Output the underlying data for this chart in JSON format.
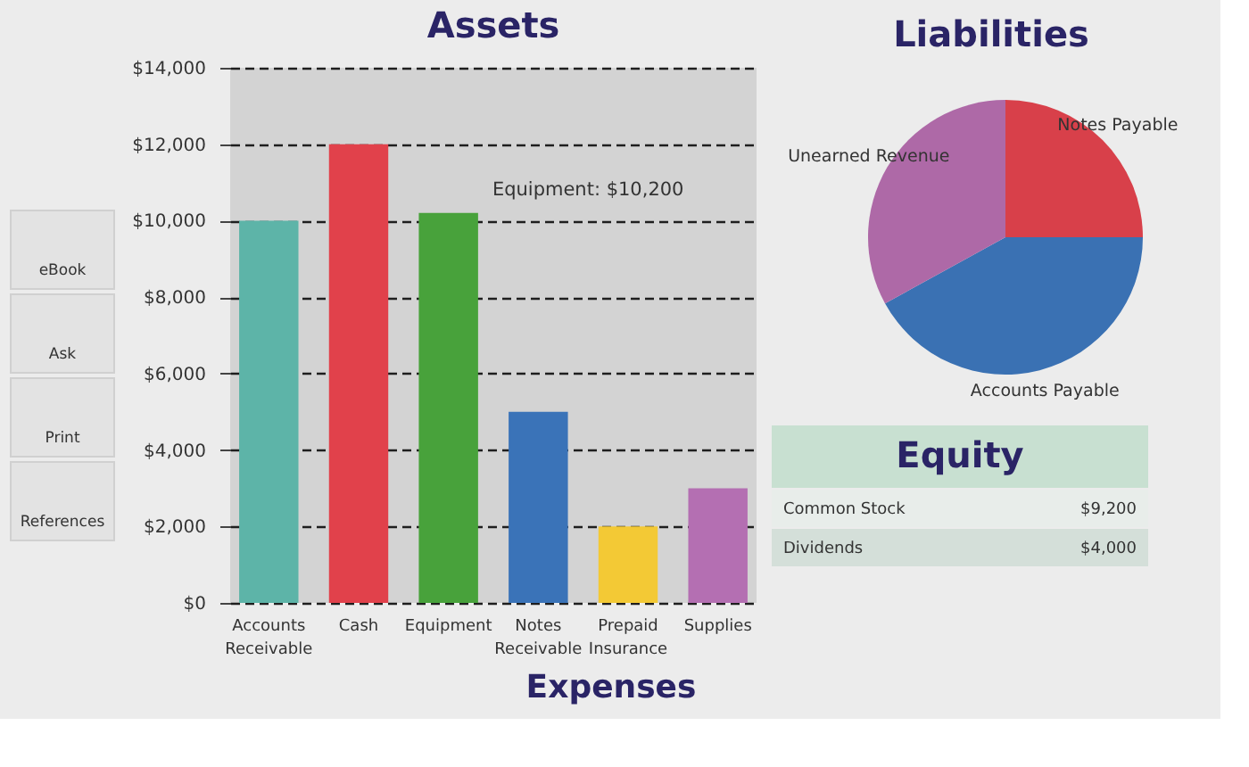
{
  "chart_data": [
    {
      "type": "other",
      "annotations": [
        "eBook",
        "Ask",
        "Print",
        "References"
      ]
    },
    {
      "type": "bar",
      "title": "Assets",
      "categories": [
        "Accounts Receivable",
        "Cash",
        "Equipment",
        "Notes Receivable",
        "Prepaid Insurance",
        "Supplies"
      ],
      "values": [
        10000,
        12000,
        10200,
        5000,
        2000,
        3000
      ],
      "colors": [
        "#5db4a8",
        "#e1414b",
        "#48a23b",
        "#3a73b8",
        "#f3c935",
        "#b46fb2"
      ],
      "ylim": [
        0,
        14000
      ],
      "yticks": [
        {
          "value": 0,
          "label": "$0"
        },
        {
          "value": 2000,
          "label": "$2,000"
        },
        {
          "value": 4000,
          "label": "$4,000"
        },
        {
          "value": 6000,
          "label": "$6,000"
        },
        {
          "value": 8000,
          "label": "$8,000"
        },
        {
          "value": 10000,
          "label": "$10,000"
        },
        {
          "value": 12000,
          "label": "$12,000"
        },
        {
          "value": 14000,
          "label": "$14,000"
        }
      ],
      "grid": "y",
      "annotations": [
        {
          "text": "Equipment: $10,200",
          "x": "Equipment",
          "y": 10200
        }
      ]
    },
    {
      "type": "pie",
      "title": "Liabilities",
      "categories": [
        "Notes Payable",
        "Accounts Payable",
        "Unearned Revenue"
      ],
      "values": [
        25,
        42,
        33
      ],
      "colors": [
        "#d8404a",
        "#3a71b3",
        "#ae69a7"
      ]
    },
    {
      "type": "other",
      "title": "Equity",
      "annotations": [
        "Common Stock",
        "$9,200",
        "Dividends",
        "$4,000"
      ]
    },
    {
      "type": "other",
      "title": "Expenses"
    }
  ]
}
